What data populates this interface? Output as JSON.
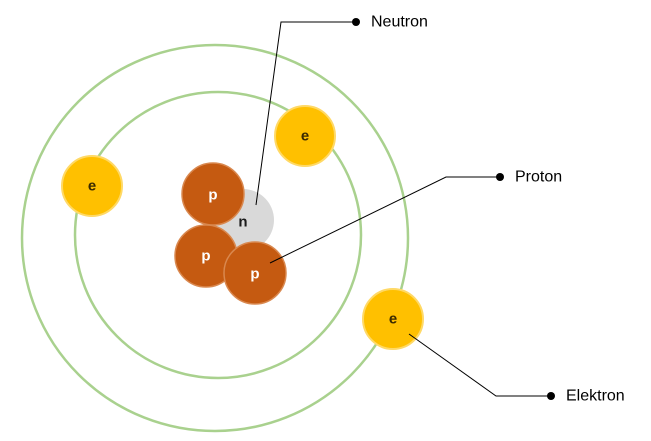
{
  "particles": {
    "neutron_letter": "n",
    "proton_letter": "p",
    "electron_letter": "e"
  },
  "labels": {
    "neutron": "Neutron",
    "proton": "Proton",
    "electron": "Elektron"
  },
  "colors": {
    "orbit": "#a9d18e",
    "electron_fill": "#ffc000",
    "electron_stroke": "#ffd966",
    "proton_fill": "#c55a11",
    "proton_stroke": "#d9884f",
    "neutron_fill": "#d9d9d9",
    "neutron_text": "#1a1a1a",
    "electron_text": "#3a2a00",
    "proton_text": "#ffffff",
    "leader_line": "#000000"
  }
}
